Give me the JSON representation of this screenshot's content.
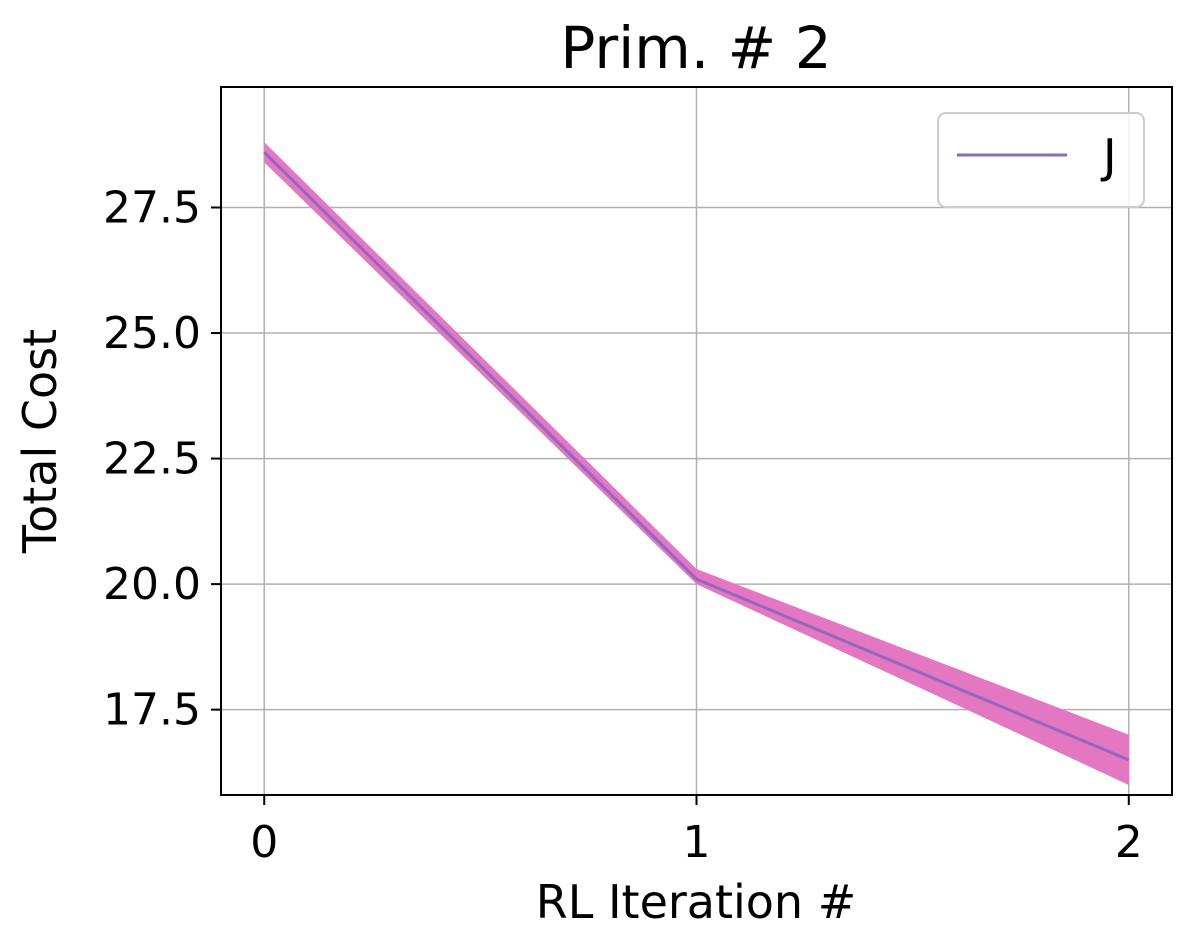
{
  "chart_data": {
    "type": "line",
    "title": "Prim. # 2",
    "xlabel": "RL Iteration #",
    "ylabel": "Total Cost",
    "x": [
      0,
      1,
      2
    ],
    "xlim": [
      -0.1,
      2.1
    ],
    "ylim": [
      15.8,
      29.9
    ],
    "xticks": [
      0,
      1,
      2
    ],
    "xtick_labels": [
      "0",
      "1",
      "2"
    ],
    "yticks": [
      17.5,
      20.0,
      22.5,
      25.0,
      27.5
    ],
    "ytick_labels": [
      "17.5",
      "20.0",
      "22.5",
      "25.0",
      "27.5"
    ],
    "grid": true,
    "legend_position": "top-right",
    "series": [
      {
        "name": "J",
        "values": [
          28.6,
          20.1,
          16.5
        ],
        "band_lower": [
          28.4,
          20.0,
          16.0
        ],
        "band_upper": [
          28.8,
          20.3,
          17.0
        ],
        "line_color": "#9467bd",
        "band_color": "#e377c2"
      }
    ]
  }
}
